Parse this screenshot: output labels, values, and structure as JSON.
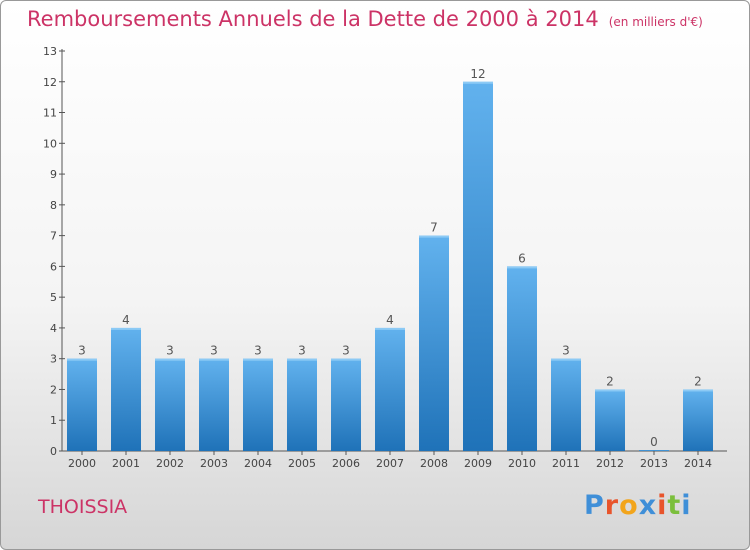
{
  "title": "Remboursements Annuels de la Dette de 2000 à 2014",
  "unit_note": "(en milliers d'€)",
  "commune": "THOISSIA",
  "logo": {
    "text": "Proxiti",
    "colors": [
      "#3f8fd8",
      "#e8542b",
      "#f2a51c",
      "#3f8fd8",
      "#e8542b",
      "#7bbf3c",
      "#3f8fd8"
    ]
  },
  "colors": {
    "bar": "#3a8fd6",
    "title": "#cc3366"
  },
  "chart_data": {
    "type": "bar",
    "categories": [
      "2000",
      "2001",
      "2002",
      "2003",
      "2004",
      "2005",
      "2006",
      "2007",
      "2008",
      "2009",
      "2010",
      "2011",
      "2012",
      "2013",
      "2014"
    ],
    "values": [
      3,
      4,
      3,
      3,
      3,
      3,
      3,
      4,
      7,
      12,
      6,
      3,
      2,
      0,
      2
    ],
    "ylim": [
      0,
      13
    ],
    "yticks": [
      0,
      1,
      2,
      3,
      4,
      5,
      6,
      7,
      8,
      9,
      10,
      11,
      12,
      13
    ],
    "grid": false,
    "data_labels": true
  }
}
